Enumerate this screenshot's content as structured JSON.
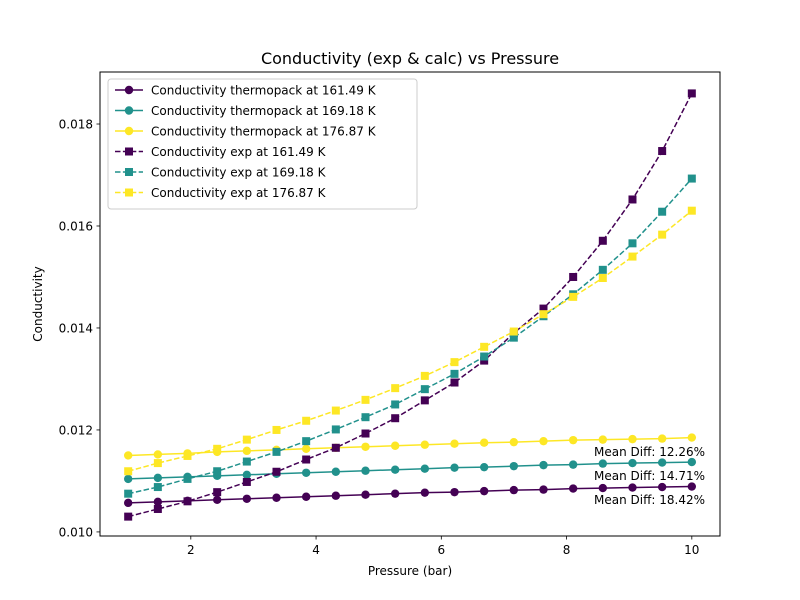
{
  "chart_data": {
    "type": "line",
    "title": "Conductivity (exp & calc) vs Pressure",
    "xlabel": "Pressure (bar)",
    "ylabel": "Conductivity",
    "xlim": [
      0.55,
      10.45
    ],
    "ylim": [
      0.00992,
      0.01902
    ],
    "x_ticks": [
      2,
      4,
      6,
      8,
      10
    ],
    "x_tick_labels": [
      "2",
      "4",
      "6",
      "8",
      "10"
    ],
    "y_ticks": [
      0.01,
      0.012,
      0.014,
      0.016,
      0.018
    ],
    "y_tick_labels": [
      "0.010",
      "0.012",
      "0.014",
      "0.016",
      "0.018"
    ],
    "grid": false,
    "legend_position": "top-left",
    "x": [
      1.0,
      1.4737,
      1.9474,
      2.4211,
      2.8947,
      3.3684,
      3.8421,
      4.3158,
      4.7895,
      5.2632,
      5.7368,
      6.2105,
      6.6842,
      7.1579,
      7.6316,
      8.1053,
      8.5789,
      9.0526,
      9.5263,
      10.0
    ],
    "series": [
      {
        "name": "Conductivity thermopack at 161.49 K",
        "color": "#440154",
        "marker": "circle",
        "linestyle": "solid",
        "values": [
          0.01057,
          0.01059,
          0.01061,
          0.01063,
          0.01065,
          0.01067,
          0.01069,
          0.01071,
          0.01073,
          0.01075,
          0.01077,
          0.01078,
          0.0108,
          0.01082,
          0.01083,
          0.01085,
          0.01086,
          0.01087,
          0.01088,
          0.01089
        ]
      },
      {
        "name": "Conductivity thermopack at 169.18 K",
        "color": "#21918c",
        "marker": "circle",
        "linestyle": "solid",
        "values": [
          0.01104,
          0.01106,
          0.01108,
          0.0111,
          0.01112,
          0.01114,
          0.01116,
          0.01118,
          0.0112,
          0.01122,
          0.01124,
          0.01126,
          0.01127,
          0.01129,
          0.01131,
          0.01132,
          0.01134,
          0.01135,
          0.01136,
          0.01137
        ]
      },
      {
        "name": "Conductivity thermopack at 176.87 K",
        "color": "#fde725",
        "marker": "circle",
        "linestyle": "solid",
        "values": [
          0.0115,
          0.01152,
          0.01154,
          0.01157,
          0.01159,
          0.01161,
          0.01163,
          0.01165,
          0.01167,
          0.01169,
          0.01171,
          0.01173,
          0.01175,
          0.01176,
          0.01178,
          0.0118,
          0.01181,
          0.01182,
          0.01183,
          0.01185
        ]
      },
      {
        "name": "Conductivity exp at 161.49 K",
        "color": "#440154",
        "marker": "square",
        "linestyle": "dashed",
        "values": [
          0.0103,
          0.01045,
          0.0106,
          0.01078,
          0.01098,
          0.01118,
          0.01142,
          0.01165,
          0.01193,
          0.01223,
          0.01258,
          0.01293,
          0.01336,
          0.0139,
          0.01438,
          0.015,
          0.01571,
          0.01652,
          0.01747,
          0.0186
        ]
      },
      {
        "name": "Conductivity exp at 169.18 K",
        "color": "#21918c",
        "marker": "square",
        "linestyle": "dashed",
        "values": [
          0.01075,
          0.01088,
          0.01104,
          0.01119,
          0.01138,
          0.01157,
          0.01178,
          0.01201,
          0.01225,
          0.0125,
          0.0128,
          0.0131,
          0.01344,
          0.01381,
          0.01423,
          0.01466,
          0.01514,
          0.01566,
          0.01628,
          0.01693
        ]
      },
      {
        "name": "Conductivity exp at 176.87 K",
        "color": "#fde725",
        "marker": "square",
        "linestyle": "dashed",
        "values": [
          0.01119,
          0.01135,
          0.01149,
          0.01163,
          0.01181,
          0.012,
          0.01218,
          0.01238,
          0.01259,
          0.01282,
          0.01306,
          0.01333,
          0.01363,
          0.01393,
          0.01427,
          0.01461,
          0.01498,
          0.0154,
          0.01583,
          0.0163
        ]
      }
    ],
    "annotations": [
      "Mean Diff: 12.26%",
      "Mean Diff: 14.71%",
      "Mean Diff: 18.42%"
    ]
  }
}
